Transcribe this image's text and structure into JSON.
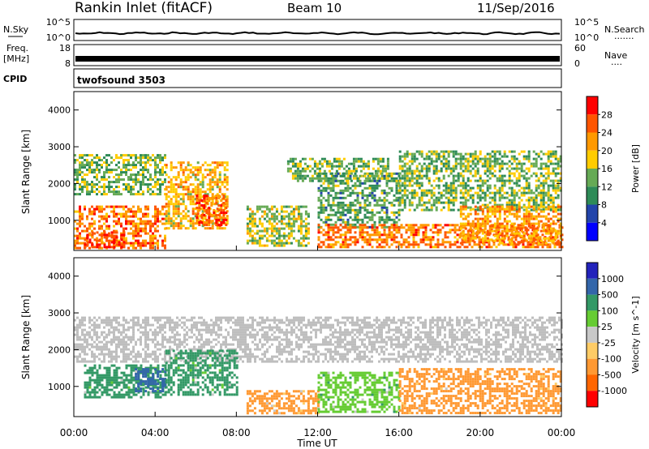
{
  "header": {
    "station": "Rankin Inlet (fitACF)",
    "beam": "Beam 10",
    "date": "11/Sep/2016"
  },
  "strips": {
    "nsky": {
      "label": "N.Sky",
      "left_ticks": [
        "10^5",
        "10^0"
      ],
      "right_ticks": [
        "10^5",
        "10^0"
      ],
      "right_label": "N.Search",
      "right_dots": "......."
    },
    "freq": {
      "label_line1": "Freq.",
      "label_line2": "[MHz]",
      "left_ticks": [
        "18",
        "8"
      ],
      "right_ticks": [
        "60",
        "0"
      ],
      "right_label": "Nave",
      "right_dots": "...."
    },
    "cpid": {
      "label": "CPID",
      "value": "twofsound 3503"
    }
  },
  "colors": {
    "power_scale": [
      "#0000ff",
      "#2244aa",
      "#2e8b57",
      "#66aa55",
      "#ffcc00",
      "#ff9900",
      "#ff5500",
      "#ff0000"
    ],
    "velocity_scale": [
      "#ff0000",
      "#ff6600",
      "#ff9933",
      "#ffcc66",
      "#c8c8c8",
      "#66cc33",
      "#339966",
      "#3366aa",
      "#2222bb"
    ],
    "ground_scatter": "#bebebe"
  },
  "chart_data": [
    {
      "type": "heatmap",
      "title": "Power",
      "ylabel": "Slant Range [km]",
      "xlabel": "",
      "x_range": [
        "00:00",
        "24:00"
      ],
      "ylim": [
        180,
        4500
      ],
      "y_ticks": [
        "1000",
        "2000",
        "3000",
        "4000"
      ],
      "colorbar": {
        "label": "Power [dB]",
        "range": [
          0,
          32
        ],
        "ticks": [
          "28",
          "24",
          "20",
          "16",
          "12",
          "8",
          "4"
        ]
      },
      "regions": [
        {
          "t_start": 0.0,
          "t_end": 4.5,
          "r_start": 250,
          "r_end": 1400,
          "value": 24
        },
        {
          "t_start": 0.5,
          "t_end": 2.5,
          "r_start": 250,
          "r_end": 700,
          "value": 28
        },
        {
          "t_start": 0.0,
          "t_end": 4.5,
          "r_start": 1700,
          "r_end": 2800,
          "value": 14
        },
        {
          "t_start": 4.5,
          "t_end": 7.5,
          "r_start": 800,
          "r_end": 2600,
          "value": 20
        },
        {
          "t_start": 6.0,
          "t_end": 7.5,
          "r_start": 900,
          "r_end": 1700,
          "value": 26
        },
        {
          "t_start": 8.5,
          "t_end": 11.5,
          "r_start": 300,
          "r_end": 1400,
          "value": 16
        },
        {
          "t_start": 10.5,
          "t_end": 15.5,
          "r_start": 2100,
          "r_end": 2700,
          "value": 14
        },
        {
          "t_start": 12.0,
          "t_end": 16.0,
          "r_start": 800,
          "r_end": 2300,
          "value": 12
        },
        {
          "t_start": 12.0,
          "t_end": 24.0,
          "r_start": 250,
          "r_end": 900,
          "value": 24
        },
        {
          "t_start": 16.0,
          "t_end": 24.0,
          "r_start": 1300,
          "r_end": 2900,
          "value": 14
        },
        {
          "t_start": 19.0,
          "t_end": 24.0,
          "r_start": 400,
          "r_end": 1400,
          "value": 22
        }
      ]
    },
    {
      "type": "heatmap",
      "title": "Velocity",
      "ylabel": "Slant Range [km]",
      "xlabel": "Time UT",
      "x_range": [
        "00:00",
        "24:00"
      ],
      "x_ticks": [
        "00:00",
        "04:00",
        "08:00",
        "12:00",
        "16:00",
        "20:00",
        "00:00"
      ],
      "ylim": [
        180,
        4500
      ],
      "y_ticks": [
        "1000",
        "2000",
        "3000",
        "4000"
      ],
      "colorbar": {
        "label": "Velocity [m s^-1]",
        "range": [
          -1000,
          1000
        ],
        "ticks": [
          "1000",
          "500",
          "100",
          "25",
          "-25",
          "-100",
          "-500",
          "-1000"
        ]
      },
      "regions": [
        {
          "t_start": 0.0,
          "t_end": 24.0,
          "r_start": 1700,
          "r_end": 2900,
          "value": "ground"
        },
        {
          "t_start": 0.5,
          "t_end": 4.5,
          "r_start": 700,
          "r_end": 1600,
          "value": 350
        },
        {
          "t_start": 3.0,
          "t_end": 4.5,
          "r_start": 900,
          "r_end": 1500,
          "value": 800
        },
        {
          "t_start": 4.5,
          "t_end": 8.0,
          "r_start": 800,
          "r_end": 2000,
          "value": 120
        },
        {
          "t_start": 8.5,
          "t_end": 12.0,
          "r_start": 300,
          "r_end": 900,
          "value": -150
        },
        {
          "t_start": 12.0,
          "t_end": 16.0,
          "r_start": 300,
          "r_end": 1400,
          "value": 90
        },
        {
          "t_start": 16.0,
          "t_end": 24.0,
          "r_start": 300,
          "r_end": 1500,
          "value": -300
        }
      ]
    }
  ]
}
